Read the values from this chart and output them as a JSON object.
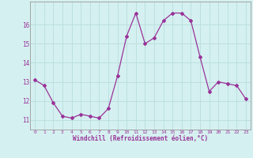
{
  "x": [
    0,
    1,
    2,
    3,
    4,
    5,
    6,
    7,
    8,
    9,
    10,
    11,
    12,
    13,
    14,
    15,
    16,
    17,
    18,
    19,
    20,
    21,
    22,
    23
  ],
  "y": [
    13.1,
    12.8,
    11.9,
    11.2,
    11.1,
    11.3,
    11.2,
    11.1,
    11.6,
    13.3,
    15.4,
    16.6,
    15.0,
    15.3,
    16.2,
    16.6,
    16.6,
    16.2,
    14.3,
    12.5,
    13.0,
    12.9,
    12.8,
    12.1
  ],
  "line_color": "#993399",
  "marker": "D",
  "marker_size": 2.0,
  "bg_color": "#d5f0f0",
  "grid_color": "#b8dede",
  "xlabel": "Windchill (Refroidissement éolien,°C)",
  "xlabel_color": "#993399",
  "tick_color": "#993399",
  "ylim": [
    10.5,
    17.2
  ],
  "yticks": [
    11,
    12,
    13,
    14,
    15,
    16
  ],
  "xticks": [
    0,
    1,
    2,
    3,
    4,
    5,
    6,
    7,
    8,
    9,
    10,
    11,
    12,
    13,
    14,
    15,
    16,
    17,
    18,
    19,
    20,
    21,
    22,
    23
  ]
}
